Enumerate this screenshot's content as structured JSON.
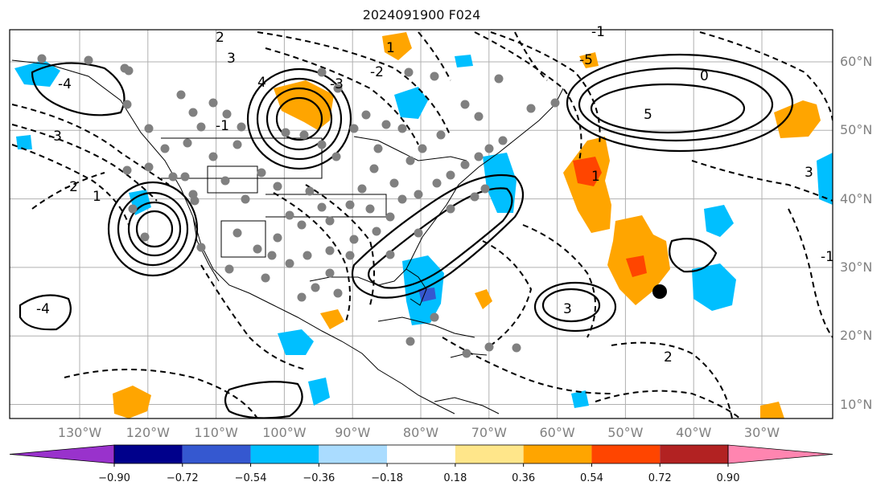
{
  "title": "2024091900 F024",
  "lat_labels": [
    {
      "text": "60°N",
      "lat": 60
    },
    {
      "text": "50°N",
      "lat": 50
    },
    {
      "text": "40°N",
      "lat": 40
    },
    {
      "text": "30°N",
      "lat": 30
    },
    {
      "text": "20°N",
      "lat": 20
    },
    {
      "text": "10°N",
      "lat": 10
    }
  ],
  "lon_labels": [
    {
      "text": "130°W",
      "lon": -130
    },
    {
      "text": "120°W",
      "lon": -120
    },
    {
      "text": "110°W",
      "lon": -110
    },
    {
      "text": "100°W",
      "lon": -100
    },
    {
      "text": "90°W",
      "lon": -90
    },
    {
      "text": "80°W",
      "lon": -80
    },
    {
      "text": "70°W",
      "lon": -70
    },
    {
      "text": "60°W",
      "lon": -60
    },
    {
      "text": "50°W",
      "lon": -50
    },
    {
      "text": "40°W",
      "lon": -40
    },
    {
      "text": "30°W",
      "lon": -30
    }
  ],
  "colorbar": {
    "ticks": [
      "−0.90",
      "−0.72",
      "−0.54",
      "−0.36",
      "−0.18",
      "0.18",
      "0.36",
      "0.54",
      "0.72",
      "0.90"
    ],
    "colors": [
      "#9932cc",
      "#00008b",
      "#3558d0",
      "#00bfff",
      "#aadcff",
      "#ffffff",
      "#ffe68a",
      "#ffa500",
      "#ff4500",
      "#b22222",
      "#ff85b0"
    ]
  },
  "contour_labels": [
    "2",
    "3",
    "-1",
    "-4",
    "-3",
    "-2",
    "1",
    "4",
    "5",
    "0",
    "-5",
    "-1",
    "1",
    "3"
  ]
}
